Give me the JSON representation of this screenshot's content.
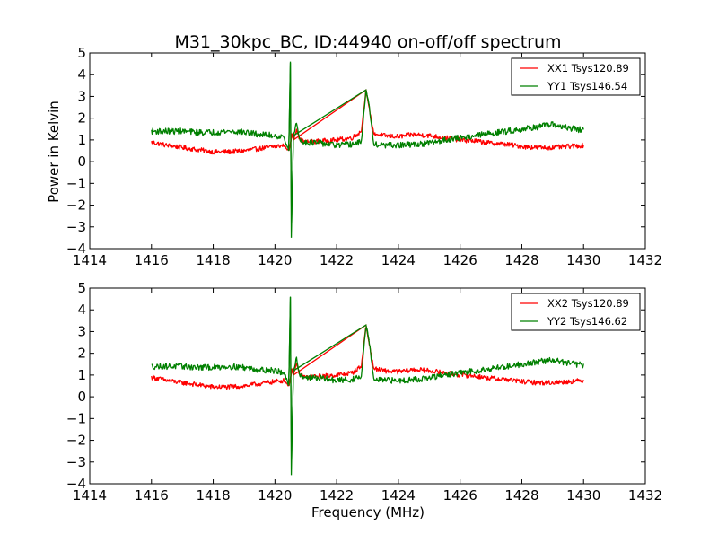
{
  "title": "M31_30kpc_BC, ID:44940 on-off/off spectrum",
  "colors": {
    "xx": "#ff0000",
    "yy": "#008000",
    "axis": "#000000"
  },
  "chart_data": [
    {
      "type": "line",
      "title": "M31_30kpc_BC, ID:44940 on-off/off spectrum",
      "xlabel": "",
      "ylabel": "Power in Kelvin",
      "xlim": [
        1414,
        1432
      ],
      "ylim": [
        -4,
        5
      ],
      "x_ticks": [
        1414,
        1416,
        1418,
        1420,
        1422,
        1424,
        1426,
        1428,
        1430,
        1432
      ],
      "y_ticks": [
        -4,
        -3,
        -2,
        -1,
        0,
        1,
        2,
        3,
        4,
        5
      ],
      "grid": false,
      "legend_position": "top-right",
      "series": [
        {
          "name": "XX1 Tsys120.89",
          "color": "#ff0000",
          "x": [
            1416.0,
            1416.5,
            1417.0,
            1417.5,
            1418.0,
            1418.5,
            1419.0,
            1419.5,
            1420.0,
            1420.3,
            1420.45,
            1420.5,
            1420.55,
            1420.6,
            1420.7,
            1420.8,
            1421.0,
            1421.5,
            1422.0,
            1422.5,
            1422.8,
            1422.95,
            1423.05,
            1423.2,
            1423.5,
            1424.0,
            1424.5,
            1425.0,
            1425.5,
            1426.0,
            1426.5,
            1427.0,
            1427.5,
            1428.0,
            1428.5,
            1429.0,
            1429.5,
            1430.0
          ],
          "y": [
            0.9,
            0.75,
            0.65,
            0.55,
            0.45,
            0.45,
            0.5,
            0.6,
            0.7,
            0.75,
            0.5,
            0.8,
            1.3,
            1.0,
            1.5,
            1.0,
            0.9,
            0.95,
            1.0,
            1.1,
            1.4,
            3.3,
            2.5,
            1.3,
            1.2,
            1.15,
            1.25,
            1.2,
            1.1,
            1.0,
            0.95,
            0.85,
            0.8,
            0.7,
            0.65,
            0.65,
            0.7,
            0.75
          ]
        },
        {
          "name": "YY1 Tsys146.54",
          "color": "#008000",
          "x": [
            1416.0,
            1416.5,
            1417.0,
            1417.5,
            1418.0,
            1418.5,
            1419.0,
            1419.5,
            1420.0,
            1420.3,
            1420.45,
            1420.5,
            1420.53,
            1420.56,
            1420.6,
            1420.7,
            1420.8,
            1421.0,
            1421.5,
            1422.0,
            1422.5,
            1422.8,
            1422.95,
            1423.05,
            1423.2,
            1423.5,
            1424.0,
            1424.5,
            1425.0,
            1425.5,
            1426.0,
            1426.5,
            1427.0,
            1427.5,
            1428.0,
            1428.5,
            1429.0,
            1429.5,
            1430.0
          ],
          "y": [
            1.4,
            1.4,
            1.4,
            1.35,
            1.35,
            1.4,
            1.35,
            1.25,
            1.2,
            1.1,
            0.5,
            4.6,
            -3.5,
            -1.4,
            1.2,
            1.8,
            1.0,
            0.9,
            0.85,
            0.75,
            0.8,
            0.9,
            3.3,
            2.6,
            0.8,
            0.75,
            0.75,
            0.8,
            0.85,
            1.0,
            1.1,
            1.2,
            1.3,
            1.4,
            1.5,
            1.6,
            1.7,
            1.55,
            1.45
          ]
        }
      ]
    },
    {
      "type": "line",
      "title": "",
      "xlabel": "Frequency (MHz)",
      "ylabel": "",
      "xlim": [
        1414,
        1432
      ],
      "ylim": [
        -4,
        5
      ],
      "x_ticks": [
        1414,
        1416,
        1418,
        1420,
        1422,
        1424,
        1426,
        1428,
        1430,
        1432
      ],
      "y_ticks": [
        -4,
        -3,
        -2,
        -1,
        0,
        1,
        2,
        3,
        4,
        5
      ],
      "grid": false,
      "legend_position": "top-right",
      "series": [
        {
          "name": "XX2 Tsys120.89",
          "color": "#ff0000",
          "x": [
            1416.0,
            1416.5,
            1417.0,
            1417.5,
            1418.0,
            1418.5,
            1419.0,
            1419.5,
            1420.0,
            1420.3,
            1420.45,
            1420.5,
            1420.55,
            1420.6,
            1420.7,
            1420.8,
            1421.0,
            1421.5,
            1422.0,
            1422.5,
            1422.8,
            1422.95,
            1423.05,
            1423.2,
            1423.5,
            1424.0,
            1424.5,
            1425.0,
            1425.5,
            1426.0,
            1426.5,
            1427.0,
            1427.5,
            1428.0,
            1428.5,
            1429.0,
            1429.5,
            1430.0
          ],
          "y": [
            0.9,
            0.75,
            0.65,
            0.55,
            0.45,
            0.45,
            0.5,
            0.6,
            0.7,
            0.75,
            0.5,
            0.8,
            1.3,
            1.0,
            1.5,
            1.0,
            0.9,
            0.95,
            1.0,
            1.1,
            1.4,
            3.3,
            2.5,
            1.3,
            1.2,
            1.15,
            1.25,
            1.2,
            1.1,
            1.0,
            0.95,
            0.85,
            0.8,
            0.7,
            0.65,
            0.65,
            0.7,
            0.75
          ]
        },
        {
          "name": "YY2 Tsys146.62",
          "color": "#008000",
          "x": [
            1416.0,
            1416.5,
            1417.0,
            1417.5,
            1418.0,
            1418.5,
            1419.0,
            1419.5,
            1420.0,
            1420.3,
            1420.45,
            1420.5,
            1420.53,
            1420.56,
            1420.6,
            1420.7,
            1420.8,
            1421.0,
            1421.5,
            1422.0,
            1422.5,
            1422.8,
            1422.95,
            1423.05,
            1423.2,
            1423.5,
            1424.0,
            1424.5,
            1425.0,
            1425.5,
            1426.0,
            1426.5,
            1427.0,
            1427.5,
            1428.0,
            1428.5,
            1429.0,
            1429.5,
            1430.0
          ],
          "y": [
            1.4,
            1.4,
            1.4,
            1.35,
            1.35,
            1.4,
            1.35,
            1.25,
            1.2,
            1.1,
            0.5,
            4.6,
            -3.6,
            -1.4,
            1.2,
            1.8,
            1.0,
            0.9,
            0.85,
            0.75,
            0.8,
            0.9,
            3.3,
            2.6,
            0.8,
            0.75,
            0.75,
            0.8,
            0.85,
            1.0,
            1.1,
            1.2,
            1.3,
            1.4,
            1.5,
            1.6,
            1.7,
            1.55,
            1.45
          ]
        }
      ]
    }
  ]
}
